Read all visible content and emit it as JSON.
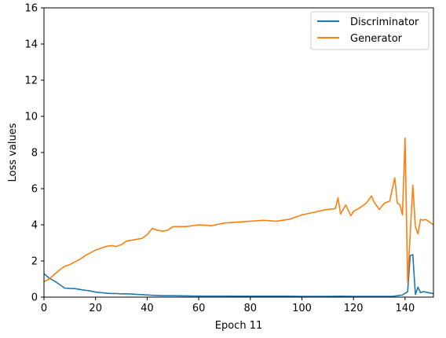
{
  "chart_data": {
    "type": "line",
    "title": "",
    "xlabel": "Epoch 11",
    "ylabel": "Loss values",
    "xlim": [
      0,
      151
    ],
    "ylim": [
      0,
      16
    ],
    "xticks": [
      "0",
      "20",
      "40",
      "60",
      "80",
      "100",
      "120",
      "140"
    ],
    "yticks": [
      "0",
      "2",
      "4",
      "6",
      "8",
      "10",
      "12",
      "14",
      "16"
    ],
    "grid": false,
    "legend_position": "top-right",
    "series": [
      {
        "name": "Discriminator",
        "color": "#1f77b4",
        "x": [
          0,
          2,
          4,
          6,
          8,
          10,
          12,
          14,
          16,
          18,
          20,
          22,
          24,
          26,
          28,
          30,
          32,
          34,
          36,
          38,
          40,
          42,
          44,
          46,
          48,
          50,
          55,
          60,
          65,
          70,
          75,
          80,
          85,
          90,
          95,
          100,
          105,
          110,
          115,
          120,
          125,
          130,
          135,
          137,
          139,
          141,
          142,
          143,
          144,
          145,
          146,
          147,
          148,
          149,
          150,
          151
        ],
        "y": [
          1.3,
          1.05,
          0.9,
          0.7,
          0.5,
          0.48,
          0.47,
          0.42,
          0.38,
          0.34,
          0.28,
          0.25,
          0.22,
          0.2,
          0.2,
          0.18,
          0.18,
          0.17,
          0.15,
          0.14,
          0.12,
          0.1,
          0.09,
          0.08,
          0.08,
          0.08,
          0.07,
          0.06,
          0.06,
          0.06,
          0.05,
          0.05,
          0.05,
          0.05,
          0.05,
          0.04,
          0.04,
          0.04,
          0.05,
          0.04,
          0.04,
          0.04,
          0.04,
          0.08,
          0.12,
          0.3,
          2.3,
          2.35,
          0.15,
          0.55,
          0.25,
          0.3,
          0.28,
          0.25,
          0.22,
          0.2
        ]
      },
      {
        "name": "Generator",
        "color": "#ff7f0e",
        "x": [
          0,
          2,
          4,
          6,
          8,
          10,
          12,
          14,
          16,
          18,
          20,
          22,
          24,
          26,
          28,
          30,
          32,
          34,
          36,
          38,
          40,
          42,
          44,
          46,
          48,
          50,
          55,
          60,
          65,
          70,
          75,
          80,
          85,
          90,
          95,
          100,
          105,
          108,
          110,
          113,
          114,
          115,
          117,
          119,
          120,
          122,
          125,
          127,
          128,
          130,
          132,
          134,
          136,
          137,
          138,
          139,
          140,
          141,
          142,
          143,
          144,
          145,
          146,
          147,
          148,
          149,
          150,
          151
        ],
        "y": [
          0.85,
          1.0,
          1.25,
          1.5,
          1.7,
          1.8,
          1.95,
          2.1,
          2.3,
          2.45,
          2.6,
          2.7,
          2.8,
          2.85,
          2.8,
          2.9,
          3.1,
          3.15,
          3.2,
          3.25,
          3.45,
          3.8,
          3.7,
          3.65,
          3.7,
          3.9,
          3.9,
          4.0,
          3.95,
          4.1,
          4.15,
          4.2,
          4.25,
          4.2,
          4.3,
          4.55,
          4.7,
          4.8,
          4.85,
          4.9,
          5.5,
          4.6,
          5.1,
          4.5,
          4.75,
          4.9,
          5.2,
          5.6,
          5.25,
          4.85,
          5.2,
          5.3,
          6.6,
          5.2,
          5.1,
          4.55,
          8.8,
          0.8,
          3.5,
          6.2,
          3.9,
          3.5,
          4.3,
          4.25,
          4.3,
          4.2,
          4.1,
          4.0
        ]
      }
    ]
  }
}
